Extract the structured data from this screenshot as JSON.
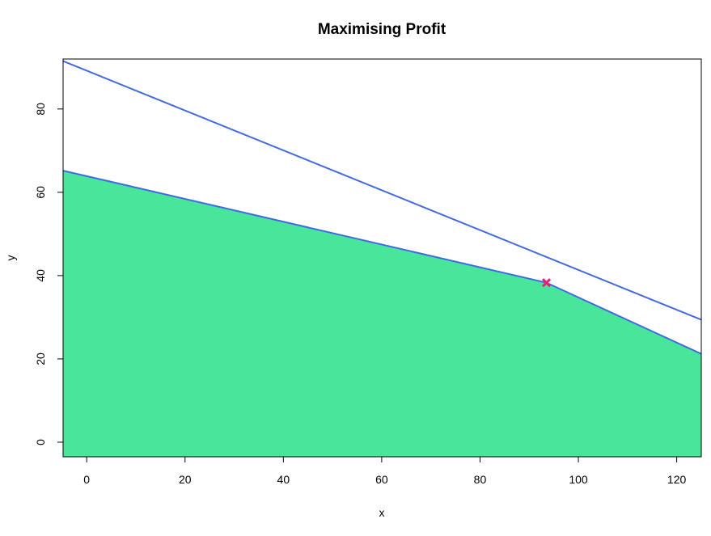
{
  "chart_data": {
    "type": "line",
    "title": "Maximising Profit",
    "xlabel": "x",
    "ylabel": "y",
    "xlim": [
      -4.8,
      125
    ],
    "ylim": [
      -3.5,
      92
    ],
    "xticks": [
      0,
      20,
      40,
      60,
      80,
      100,
      120
    ],
    "yticks": [
      0,
      20,
      40,
      60,
      80
    ],
    "grid": false,
    "series": [
      {
        "x": [
          -4.8,
          125
        ],
        "y": [
          91.5,
          29.4
        ],
        "color": "#4169E1"
      },
      {
        "x": [
          -4.8,
          93.5,
          125
        ],
        "y": [
          65.2,
          38.3,
          21.2
        ],
        "color": "#4169E1"
      }
    ],
    "feasible_region": {
      "x": [
        -4.8,
        93.5,
        125,
        125,
        -4.8
      ],
      "y": [
        65.2,
        38.3,
        21.2,
        -3.5,
        -3.5
      ],
      "color": "#48E69A"
    },
    "optimum": {
      "x": 93.5,
      "y": 38.3,
      "marker": "x",
      "color": "#E8217A"
    }
  }
}
